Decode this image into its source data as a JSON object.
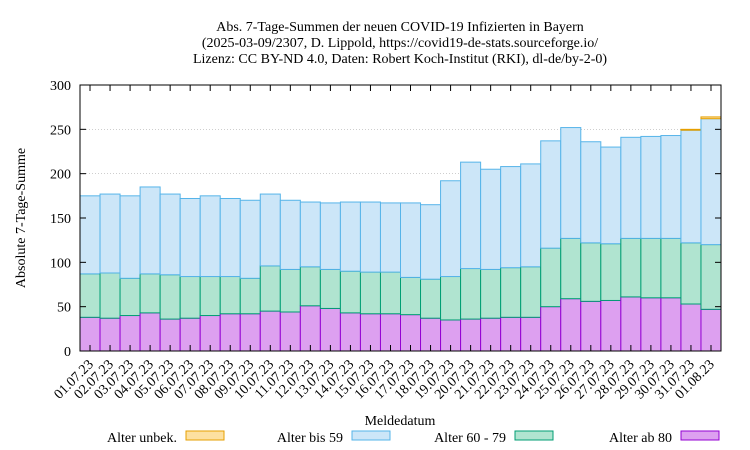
{
  "chart_data": {
    "type": "bar",
    "stacked": true,
    "title": [
      "Abs. 7-Tage-Summen der neuen COVID-19 Infizierten in Bayern",
      "(2025-03-09/2307, D. Lippold, https://covid19-de-stats.sourceforge.io/",
      "Lizenz: CC BY-ND 4.0, Daten: Robert Koch-Institut (RKI), dl-de/by-2-0)"
    ],
    "xlabel": "Meldedatum",
    "ylabel": "Absolute 7-Tage-Summe",
    "ylim": [
      0,
      300
    ],
    "yticks": [
      0,
      50,
      100,
      150,
      200,
      250,
      300
    ],
    "categories": [
      "01.07.23",
      "02.07.23",
      "03.07.23",
      "04.07.23",
      "05.07.23",
      "06.07.23",
      "07.07.23",
      "08.07.23",
      "09.07.23",
      "10.07.23",
      "11.07.23",
      "12.07.23",
      "13.07.23",
      "14.07.23",
      "15.07.23",
      "16.07.23",
      "17.07.23",
      "18.07.23",
      "19.07.23",
      "20.07.23",
      "21.07.23",
      "22.07.23",
      "23.07.23",
      "24.07.23",
      "25.07.23",
      "26.07.23",
      "27.07.23",
      "28.07.23",
      "29.07.23",
      "30.07.23",
      "31.07.23",
      "01.08.23"
    ],
    "legend_position": "bottom",
    "series": [
      {
        "name": "Alter ab 80",
        "color": "#dda0f0",
        "stroke": "#9400d3",
        "values": [
          38,
          37,
          40,
          43,
          36,
          37,
          40,
          42,
          42,
          45,
          44,
          51,
          48,
          43,
          42,
          42,
          41,
          37,
          35,
          36,
          37,
          38,
          38,
          50,
          59,
          56,
          57,
          61,
          60,
          60,
          53,
          47
        ]
      },
      {
        "name": "Alter 60 - 79",
        "color": "#b0e4d0",
        "stroke": "#009e73",
        "values": [
          49,
          51,
          42,
          44,
          50,
          47,
          44,
          42,
          40,
          51,
          48,
          44,
          44,
          47,
          47,
          47,
          42,
          44,
          49,
          57,
          55,
          56,
          57,
          66,
          68,
          66,
          64,
          66,
          67,
          67,
          69,
          73
        ]
      },
      {
        "name": "Alter bis 59",
        "color": "#cce6f8",
        "stroke": "#56b4e9",
        "values": [
          88,
          89,
          93,
          98,
          91,
          88,
          91,
          88,
          88,
          81,
          78,
          73,
          75,
          78,
          79,
          78,
          84,
          84,
          108,
          120,
          113,
          114,
          116,
          121,
          125,
          114,
          109,
          114,
          115,
          116,
          127,
          142
        ]
      },
      {
        "name": "Alter unbek.",
        "color": "#fde0a0",
        "stroke": "#e69f00",
        "values": [
          0,
          0,
          0,
          0,
          0,
          0,
          0,
          0,
          0,
          0,
          0,
          0,
          0,
          0,
          0,
          0,
          0,
          0,
          0,
          0,
          0,
          0,
          0,
          0,
          0,
          0,
          0,
          0,
          0,
          0,
          1,
          2
        ]
      }
    ],
    "legend_order": [
      "Alter unbek.",
      "Alter bis 59",
      "Alter 60 - 79",
      "Alter ab 80"
    ]
  }
}
